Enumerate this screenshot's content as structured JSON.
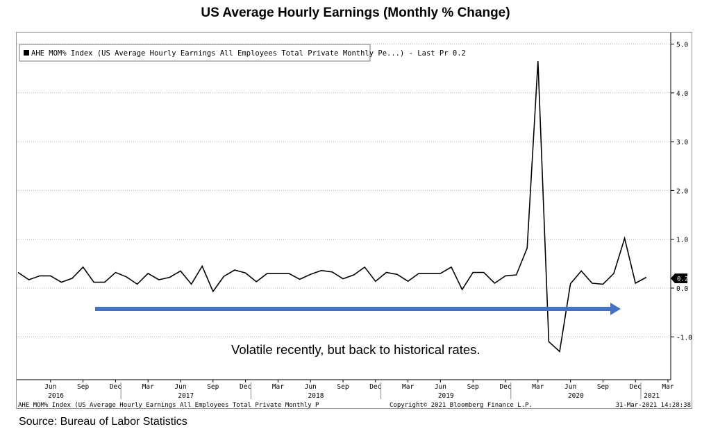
{
  "title": "US Average Hourly Earnings (Monthly % Change)",
  "source": "Source: Bureau of Labor Statistics",
  "legend_text": "AHE MOM% Index (US Average Hourly Earnings All Employees Total Private Monthly Pe...) - Last Pr 0.2",
  "footer": {
    "left": "AHE MOM% Index (US Average Hourly Earnings All Employees Total Private Monthly P",
    "center": "Copyright© 2021 Bloomberg Finance L.P.",
    "right": "31-Mar-2021 14:28:38"
  },
  "annotation": "Volatile recently, but back to historical rates.",
  "colors": {
    "line": "#000000",
    "arrow": "#4472c4",
    "grid": "#b0b0b0"
  },
  "chart_data": {
    "type": "line",
    "ylim": [
      -1.9,
      5.1
    ],
    "yticks": [
      -1.0,
      0.0,
      1.0,
      2.0,
      3.0,
      4.0,
      5.0
    ],
    "ytick_labels": [
      "-1.0",
      "0.0",
      "1.0",
      "2.0",
      "3.0",
      "4.0",
      "5.0"
    ],
    "month_labels": [
      "Jun",
      "Sep",
      "Dec",
      "Mar",
      "Jun",
      "Sep",
      "Dec",
      "Mar",
      "Jun",
      "Sep",
      "Dec",
      "Mar",
      "Jun",
      "Sep",
      "Dec",
      "Mar",
      "Jun",
      "Sep",
      "Dec",
      "Mar"
    ],
    "year_labels": [
      "2016",
      "2017",
      "2018",
      "2019",
      "2020",
      "2021"
    ],
    "last_value_label": "0.2",
    "x": [
      "2016-03",
      "2016-04",
      "2016-05",
      "2016-06",
      "2016-07",
      "2016-08",
      "2016-09",
      "2016-10",
      "2016-11",
      "2016-12",
      "2017-01",
      "2017-02",
      "2017-03",
      "2017-04",
      "2017-05",
      "2017-06",
      "2017-07",
      "2017-08",
      "2017-09",
      "2017-10",
      "2017-11",
      "2017-12",
      "2018-01",
      "2018-02",
      "2018-03",
      "2018-04",
      "2018-05",
      "2018-06",
      "2018-07",
      "2018-08",
      "2018-09",
      "2018-10",
      "2018-11",
      "2018-12",
      "2019-01",
      "2019-02",
      "2019-03",
      "2019-04",
      "2019-05",
      "2019-06",
      "2019-07",
      "2019-08",
      "2019-09",
      "2019-10",
      "2019-11",
      "2019-12",
      "2020-01",
      "2020-02",
      "2020-03",
      "2020-04",
      "2020-05",
      "2020-06",
      "2020-07",
      "2020-08",
      "2020-09",
      "2020-10",
      "2020-11",
      "2020-12",
      "2021-01",
      "2021-02"
    ],
    "values": [
      0.32,
      0.17,
      0.25,
      0.25,
      0.12,
      0.2,
      0.43,
      0.12,
      0.12,
      0.32,
      0.23,
      0.08,
      0.3,
      0.17,
      0.22,
      0.35,
      0.08,
      0.45,
      -0.07,
      0.24,
      0.37,
      0.31,
      0.13,
      0.3,
      0.3,
      0.3,
      0.18,
      0.28,
      0.36,
      0.33,
      0.19,
      0.27,
      0.43,
      0.14,
      0.32,
      0.28,
      0.14,
      0.3,
      0.3,
      0.3,
      0.43,
      -0.03,
      0.32,
      0.32,
      0.1,
      0.25,
      0.27,
      0.82,
      4.65,
      -1.1,
      -1.3,
      0.09,
      0.35,
      0.1,
      0.08,
      0.3,
      1.02,
      0.1,
      0.22,
      null
    ]
  }
}
